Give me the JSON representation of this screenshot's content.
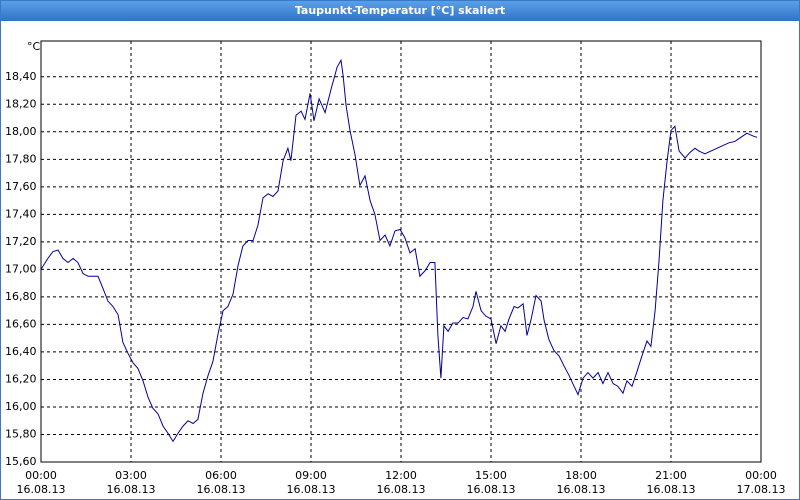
{
  "chart_data": {
    "type": "line",
    "title": "Taupunkt-Temperatur [°C] skaliert",
    "y_unit": "°C",
    "x": [
      0,
      0.23,
      0.4,
      0.57,
      0.73,
      0.9,
      1.07,
      1.23,
      1.4,
      1.57,
      1.9,
      2.07,
      2.23,
      2.4,
      2.57,
      2.73,
      2.9,
      3.07,
      3.23,
      3.4,
      3.57,
      3.73,
      3.9,
      4.07,
      4.23,
      4.4,
      4.57,
      4.73,
      4.9,
      5.07,
      5.23,
      5.4,
      5.57,
      5.73,
      5.9,
      6.07,
      6.23,
      6.4,
      6.57,
      6.73,
      6.9,
      7.07,
      7.23,
      7.4,
      7.57,
      7.73,
      7.9,
      8.07,
      8.23,
      8.33,
      8.5,
      8.67,
      8.8,
      8.97,
      9.1,
      9.27,
      9.47,
      9.67,
      9.87,
      10,
      10.07,
      10.17,
      10.3,
      10.47,
      10.63,
      10.8,
      10.97,
      11.13,
      11.3,
      11.47,
      11.63,
      11.8,
      11.97,
      12.13,
      12.3,
      12.47,
      12.63,
      12.8,
      12.97,
      13.13,
      13.23,
      13.33,
      13.43,
      13.57,
      13.73,
      13.9,
      14.07,
      14.23,
      14.4,
      14.5,
      14.67,
      14.83,
      15,
      15.17,
      15.33,
      15.47,
      15.6,
      15.77,
      15.9,
      16.07,
      16.2,
      16.33,
      16.5,
      16.67,
      16.77,
      16.93,
      17.1,
      17.27,
      17.43,
      17.6,
      17.77,
      17.9,
      18.07,
      18.23,
      18.4,
      18.57,
      18.73,
      18.9,
      19.07,
      19.23,
      19.4,
      19.53,
      19.7,
      19.87,
      20.03,
      20.2,
      20.33,
      20.47,
      20.6,
      20.73,
      20.87,
      21,
      21.13,
      21.27,
      21.47,
      21.63,
      21.8,
      21.93,
      22.13,
      22.33,
      22.53,
      22.73,
      22.93,
      23.13,
      23.33,
      23.53,
      23.73,
      23.87
    ],
    "values": [
      17.0,
      17.08,
      17.13,
      17.14,
      17.08,
      17.05,
      17.08,
      17.05,
      16.97,
      16.95,
      16.95,
      16.86,
      16.77,
      16.73,
      16.67,
      16.47,
      16.39,
      16.32,
      16.28,
      16.19,
      16.07,
      15.99,
      15.95,
      15.86,
      15.81,
      15.75,
      15.81,
      15.86,
      15.9,
      15.88,
      15.91,
      16.1,
      16.23,
      16.33,
      16.53,
      16.7,
      16.73,
      16.82,
      17.03,
      17.17,
      17.21,
      17.21,
      17.32,
      17.52,
      17.55,
      17.53,
      17.57,
      17.79,
      17.88,
      17.79,
      18.12,
      18.15,
      18.09,
      18.28,
      18.08,
      18.24,
      18.14,
      18.31,
      18.47,
      18.52,
      18.41,
      18.19,
      18.01,
      17.83,
      17.61,
      17.68,
      17.5,
      17.4,
      17.21,
      17.25,
      17.17,
      17.28,
      17.29,
      17.23,
      17.12,
      17.15,
      16.95,
      16.99,
      17.05,
      17.05,
      16.52,
      16.21,
      16.59,
      16.55,
      16.61,
      16.61,
      16.65,
      16.64,
      16.73,
      16.84,
      16.7,
      16.66,
      16.64,
      16.46,
      16.59,
      16.55,
      16.64,
      16.73,
      16.72,
      16.75,
      16.52,
      16.63,
      16.81,
      16.77,
      16.63,
      16.49,
      16.41,
      16.37,
      16.3,
      16.23,
      16.15,
      16.09,
      16.21,
      16.25,
      16.21,
      16.25,
      16.17,
      16.25,
      16.17,
      16.15,
      16.1,
      16.19,
      16.15,
      16.26,
      16.37,
      16.48,
      16.44,
      16.7,
      17.06,
      17.5,
      17.79,
      18.01,
      18.04,
      17.86,
      17.81,
      17.85,
      17.88,
      17.86,
      17.84,
      17.86,
      17.88,
      17.9,
      17.92,
      17.93,
      17.96,
      17.99,
      17.97,
      17.96
    ],
    "color": "#0000a0",
    "grid": true,
    "xlim": [
      0,
      24
    ],
    "ylim": [
      15.6,
      18.66
    ],
    "xticks": [
      {
        "value": 0,
        "label": "00:00\n16.08.13"
      },
      {
        "value": 3,
        "label": "03:00\n16.08.13"
      },
      {
        "value": 6,
        "label": "06:00\n16.08.13"
      },
      {
        "value": 9,
        "label": "09:00\n16.08.13"
      },
      {
        "value": 12,
        "label": "12:00\n16.08.13"
      },
      {
        "value": 15,
        "label": "15:00\n16.08.13"
      },
      {
        "value": 18,
        "label": "18:00\n16.08.13"
      },
      {
        "value": 21,
        "label": "21:00\n16.08.13"
      },
      {
        "value": 24,
        "label": "00:00\n17.08.13"
      }
    ],
    "yticks": [
      {
        "value": 15.6,
        "label": "15,60"
      },
      {
        "value": 15.8,
        "label": "15,80"
      },
      {
        "value": 16.0,
        "label": "16,00"
      },
      {
        "value": 16.2,
        "label": "16,20"
      },
      {
        "value": 16.4,
        "label": "16,40"
      },
      {
        "value": 16.6,
        "label": "16,60"
      },
      {
        "value": 16.8,
        "label": "16,80"
      },
      {
        "value": 17.0,
        "label": "17,00"
      },
      {
        "value": 17.2,
        "label": "17,20"
      },
      {
        "value": 17.4,
        "label": "17,40"
      },
      {
        "value": 17.6,
        "label": "17,60"
      },
      {
        "value": 17.8,
        "label": "17,80"
      },
      {
        "value": 18.0,
        "label": "18,00"
      },
      {
        "value": 18.2,
        "label": "18,20"
      },
      {
        "value": 18.4,
        "label": "18,40"
      }
    ]
  }
}
